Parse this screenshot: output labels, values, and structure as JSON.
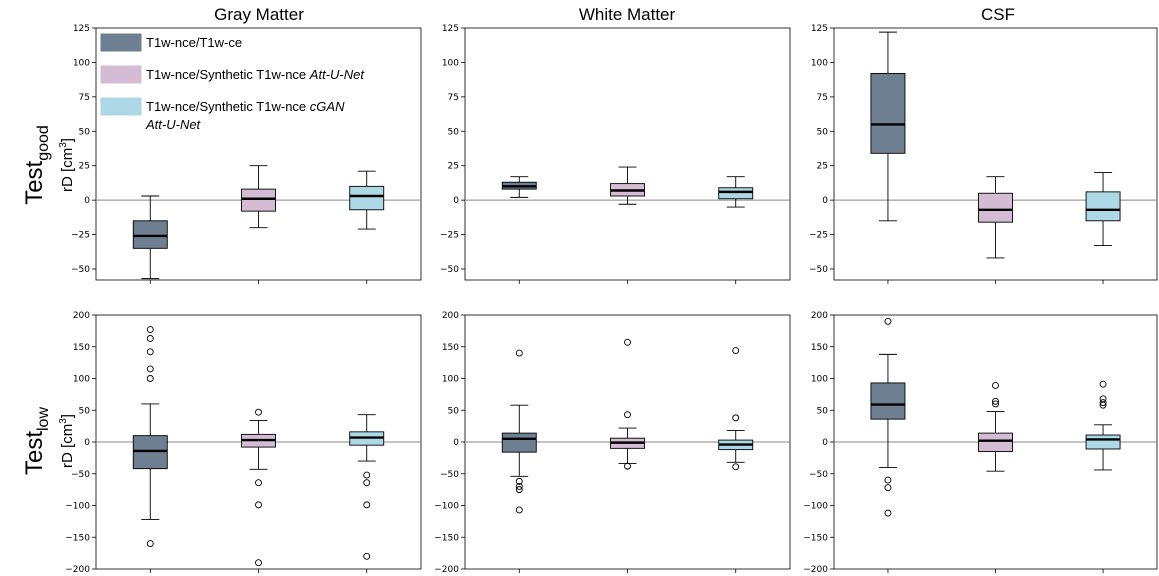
{
  "figure": {
    "columns": [
      "Gray Matter",
      "White Matter",
      "CSF"
    ],
    "rows": [
      {
        "label_main": "Test",
        "label_sub": "good",
        "ylabel_main": "rD [cm",
        "ylabel_sup": "3",
        "ylabel_end": "]"
      },
      {
        "label_main": "Test",
        "label_sub": "low",
        "ylabel_main": "rD [cm",
        "ylabel_sup": "3",
        "ylabel_end": "]"
      }
    ],
    "legend": [
      {
        "text": "T1w-nce/T1w-ce",
        "italic": "",
        "italic2": "",
        "color": "#6e7f91"
      },
      {
        "text": "T1w-nce/Synthetic T1w-nce ",
        "italic": "Att-U-Net",
        "italic2": "",
        "color": "#d5bcd5"
      },
      {
        "text": "T1w-nce/Synthetic T1w-nce ",
        "italic": "cGAN",
        "italic2": "Att-U-Net",
        "color": "#add8e6"
      }
    ]
  },
  "chart_data": [
    {
      "type": "box",
      "row": 0,
      "col": 0,
      "title": "Gray Matter",
      "ylim": [
        -58,
        125
      ],
      "yticks": [
        -50,
        -25,
        0,
        25,
        50,
        75,
        100,
        125
      ],
      "boxes": [
        {
          "series": 0,
          "whislo": -57,
          "q1": -35,
          "med": -26,
          "q3": -15,
          "whishi": 3,
          "fliers": []
        },
        {
          "series": 1,
          "whislo": -20,
          "q1": -8,
          "med": 1,
          "q3": 8,
          "whishi": 25,
          "fliers": []
        },
        {
          "series": 2,
          "whislo": -21,
          "q1": -7,
          "med": 3,
          "q3": 10,
          "whishi": 21,
          "fliers": []
        }
      ]
    },
    {
      "type": "box",
      "row": 0,
      "col": 1,
      "title": "White Matter",
      "ylim": [
        -58,
        125
      ],
      "yticks": [
        -50,
        -25,
        0,
        25,
        50,
        75,
        100,
        125
      ],
      "boxes": [
        {
          "series": 0,
          "whislo": 2,
          "q1": 8,
          "med": 10,
          "q3": 13,
          "whishi": 17,
          "fliers": []
        },
        {
          "series": 1,
          "whislo": -3,
          "q1": 3,
          "med": 7,
          "q3": 12,
          "whishi": 24,
          "fliers": []
        },
        {
          "series": 2,
          "whislo": -5,
          "q1": 1,
          "med": 6,
          "q3": 9,
          "whishi": 17,
          "fliers": []
        }
      ]
    },
    {
      "type": "box",
      "row": 0,
      "col": 2,
      "title": "CSF",
      "ylim": [
        -58,
        125
      ],
      "yticks": [
        -50,
        -25,
        0,
        25,
        50,
        75,
        100,
        125
      ],
      "boxes": [
        {
          "series": 0,
          "whislo": -15,
          "q1": 34,
          "med": 55,
          "q3": 92,
          "whishi": 122,
          "fliers": []
        },
        {
          "series": 1,
          "whislo": -42,
          "q1": -16,
          "med": -7,
          "q3": 5,
          "whishi": 17,
          "fliers": []
        },
        {
          "series": 2,
          "whislo": -33,
          "q1": -15,
          "med": -7,
          "q3": 6,
          "whishi": 20,
          "fliers": []
        }
      ]
    },
    {
      "type": "box",
      "row": 1,
      "col": 0,
      "title": "",
      "ylim": [
        -200,
        200
      ],
      "yticks": [
        -200,
        -150,
        -100,
        -50,
        0,
        50,
        100,
        150,
        200
      ],
      "boxes": [
        {
          "series": 0,
          "whislo": -122,
          "q1": -42,
          "med": -14,
          "q3": 10,
          "whishi": 60,
          "fliers": [
            -160,
            100,
            115,
            142,
            163,
            177
          ]
        },
        {
          "series": 1,
          "whislo": -43,
          "q1": -8,
          "med": 3,
          "q3": 12,
          "whishi": 34,
          "fliers": [
            -190,
            -99,
            -64,
            47
          ]
        },
        {
          "series": 2,
          "whislo": -30,
          "q1": -5,
          "med": 7,
          "q3": 16,
          "whishi": 43,
          "fliers": [
            -180,
            -99,
            -64,
            -52
          ]
        }
      ]
    },
    {
      "type": "box",
      "row": 1,
      "col": 1,
      "title": "",
      "ylim": [
        -200,
        200
      ],
      "yticks": [
        -200,
        -150,
        -100,
        -50,
        0,
        50,
        100,
        150,
        200
      ],
      "boxes": [
        {
          "series": 0,
          "whislo": -54,
          "q1": -16,
          "med": 5,
          "q3": 14,
          "whishi": 58,
          "fliers": [
            -107,
            -75,
            -70,
            -62,
            140
          ]
        },
        {
          "series": 1,
          "whislo": -34,
          "q1": -10,
          "med": -1,
          "q3": 6,
          "whishi": 22,
          "fliers": [
            -38,
            43,
            157
          ]
        },
        {
          "series": 2,
          "whislo": -32,
          "q1": -12,
          "med": -4,
          "q3": 3,
          "whishi": 18,
          "fliers": [
            -39,
            38,
            144
          ]
        }
      ]
    },
    {
      "type": "box",
      "row": 1,
      "col": 2,
      "title": "",
      "ylim": [
        -200,
        200
      ],
      "yticks": [
        -200,
        -150,
        -100,
        -50,
        0,
        50,
        100,
        150,
        200
      ],
      "boxes": [
        {
          "series": 0,
          "whislo": -40,
          "q1": 36,
          "med": 59,
          "q3": 93,
          "whishi": 138,
          "fliers": [
            -112,
            -72,
            -60,
            190
          ]
        },
        {
          "series": 1,
          "whislo": -46,
          "q1": -15,
          "med": 2,
          "q3": 14,
          "whishi": 48,
          "fliers": [
            60,
            64,
            89
          ]
        },
        {
          "series": 2,
          "whislo": -44,
          "q1": -11,
          "med": 4,
          "q3": 11,
          "whishi": 27,
          "fliers": [
            58,
            62,
            68,
            91
          ]
        }
      ]
    }
  ]
}
